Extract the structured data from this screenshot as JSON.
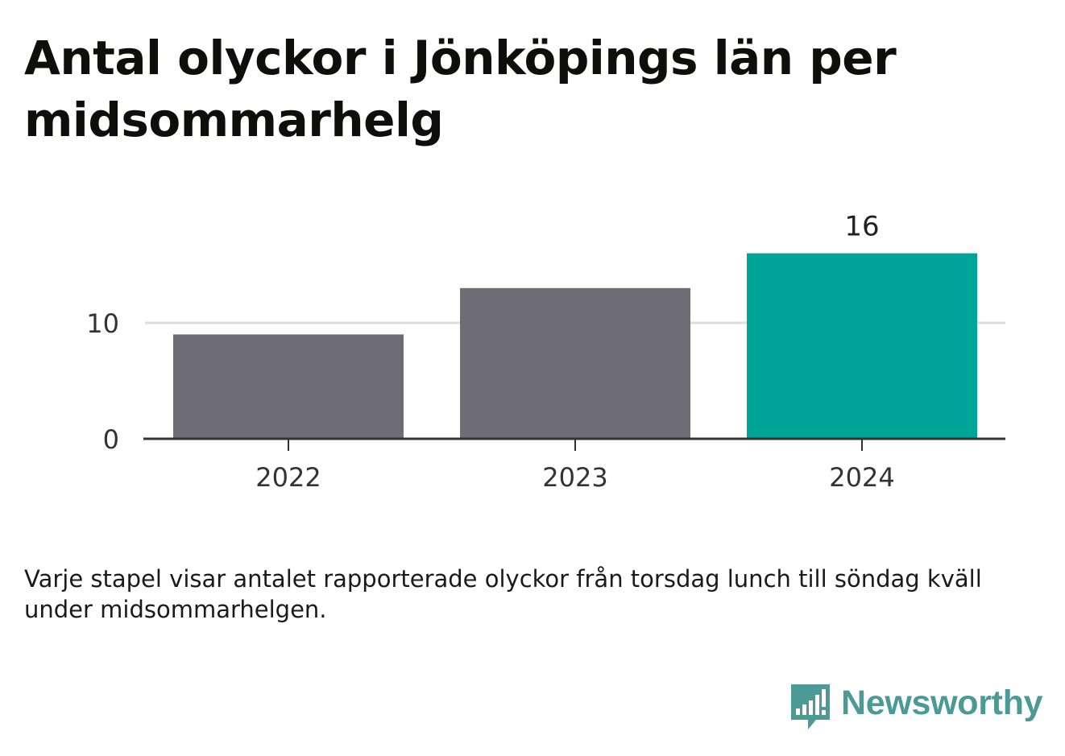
{
  "title": "Antal olyckor i Jönköpings län per midsommarhelg",
  "note": "Varje stapel visar antalet rapporterade olyckor från torsdag lunch till söndag kväll under midsommarhelgen.",
  "logo": {
    "text": "Newsworthy",
    "icon": "bar-chart-speech-bubble-icon"
  },
  "colors": {
    "bar_default": "#6e6d73",
    "bar_highlight": "#00a499",
    "gridline": "#dddddd",
    "axis": "#333333",
    "brand": "#4b9a96"
  },
  "chart_data": {
    "type": "bar",
    "categories": [
      "2022",
      "2023",
      "2024"
    ],
    "values": [
      9,
      13,
      16
    ],
    "highlight_index": 2,
    "data_labels": [
      null,
      null,
      "16"
    ],
    "ylim": [
      0,
      16
    ],
    "yticks": [
      0,
      10
    ],
    "ytick_labels": [
      "0",
      "10"
    ],
    "grid": true,
    "xlabel": "",
    "ylabel": ""
  }
}
